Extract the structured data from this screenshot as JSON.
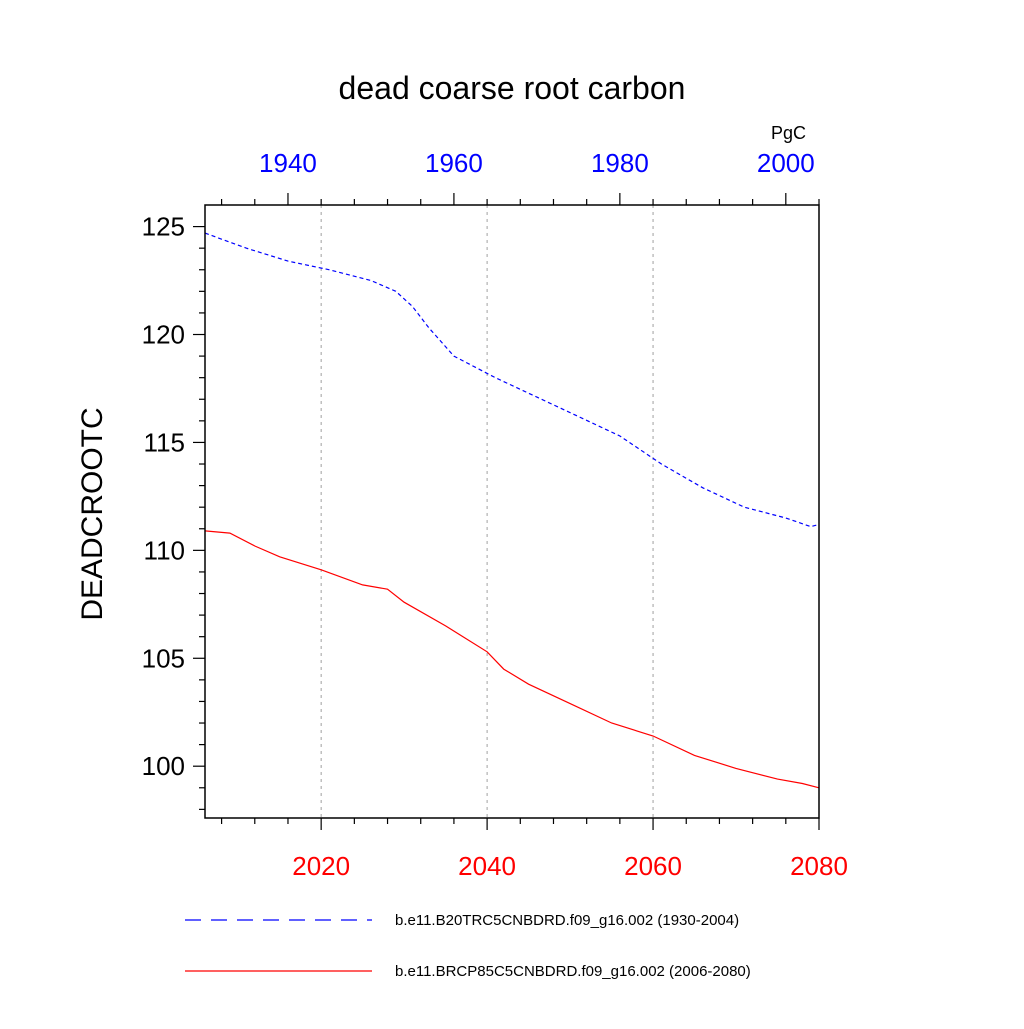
{
  "chart_data": {
    "type": "line",
    "title": "dead coarse root carbon",
    "ylabel": "DEADCROOTC",
    "units": "PgC",
    "ylim": [
      97.6,
      126.0
    ],
    "y_ticks": [
      100,
      105,
      110,
      115,
      120,
      125
    ],
    "y_tick_labels": [
      "100",
      "105",
      "110",
      "115",
      "120",
      "125"
    ],
    "grid_lines_x": [
      2020,
      2040,
      2060
    ],
    "bottom_axis": {
      "color": "#ff0000",
      "range": [
        2006,
        2080
      ],
      "ticks": [
        2020,
        2040,
        2060,
        2080
      ],
      "tick_labels": [
        "2020",
        "2040",
        "2060",
        "2080"
      ]
    },
    "top_axis": {
      "color": "#0000ff",
      "range": [
        1930,
        2004
      ],
      "ticks": [
        1940,
        1960,
        1980,
        2000
      ],
      "tick_labels": [
        "1940",
        "1960",
        "1980",
        "2000"
      ]
    },
    "series": [
      {
        "name": "b.e11.B20TRC5CNBDRD.f09_g16.002 (1930-2004)",
        "color": "#0000ff",
        "style": "dashed",
        "axis": "top",
        "x": [
          1930,
          1935,
          1940,
          1945,
          1950,
          1953,
          1955,
          1957,
          1960,
          1965,
          1970,
          1975,
          1980,
          1985,
          1990,
          1995,
          2000,
          2003,
          2004
        ],
        "values": [
          124.7,
          124.0,
          123.4,
          123.0,
          122.5,
          122.0,
          121.3,
          120.3,
          119.0,
          118.0,
          117.1,
          116.2,
          115.3,
          114.0,
          112.9,
          112.0,
          111.5,
          111.1,
          111.2
        ]
      },
      {
        "name": "b.e11.BRCP85C5CNBDRD.f09_g16.002 (2006-2080)",
        "color": "#ff0000",
        "style": "solid",
        "axis": "bottom",
        "x": [
          2006,
          2009,
          2012,
          2015,
          2020,
          2025,
          2028,
          2030,
          2035,
          2040,
          2042,
          2045,
          2050,
          2055,
          2060,
          2065,
          2070,
          2075,
          2078,
          2080
        ],
        "values": [
          110.9,
          110.8,
          110.2,
          109.7,
          109.1,
          108.4,
          108.2,
          107.6,
          106.5,
          105.3,
          104.5,
          103.8,
          102.9,
          102.0,
          101.4,
          100.5,
          99.9,
          99.4,
          99.2,
          99.0
        ]
      }
    ]
  }
}
